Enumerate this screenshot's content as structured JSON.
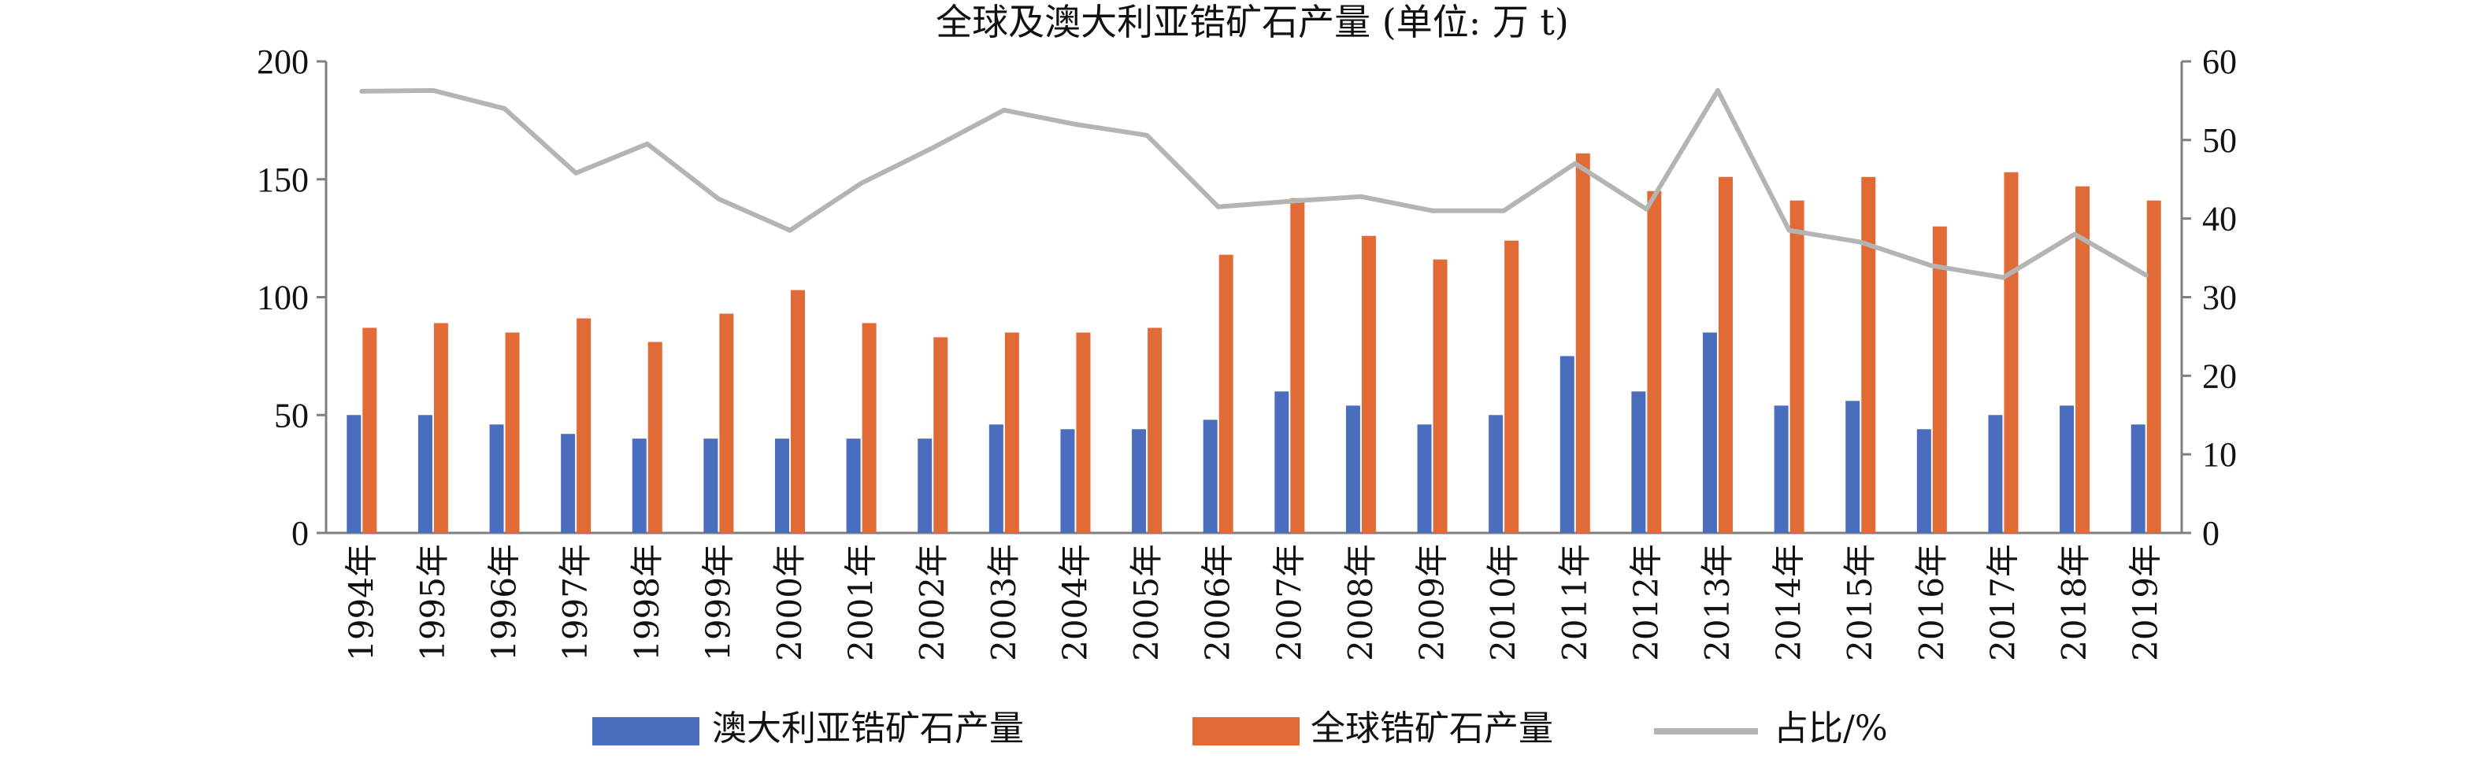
{
  "colors": {
    "australia": "#4a6ebd",
    "global": "#e06b36",
    "ratio": "#b4b4b4",
    "axis": "#7f7f7f"
  },
  "chart_data": {
    "type": "bar",
    "title": "全球及澳大利亚锆矿石产量 (单位: 万 t)",
    "categories": [
      "1994年",
      "1995年",
      "1996年",
      "1997年",
      "1998年",
      "1999年",
      "2000年",
      "2001年",
      "2002年",
      "2003年",
      "2004年",
      "2005年",
      "2006年",
      "2007年",
      "2008年",
      "2009年",
      "2010年",
      "2011年",
      "2012年",
      "2013年",
      "2014年",
      "2015年",
      "2016年",
      "2017年",
      "2018年",
      "2019年"
    ],
    "y_left": {
      "range": [
        0,
        200
      ],
      "ticks": [
        0,
        50,
        100,
        150,
        200
      ]
    },
    "y_right": {
      "range": [
        0,
        60
      ],
      "ticks": [
        0,
        10,
        20,
        30,
        40,
        50,
        60
      ]
    },
    "series": [
      {
        "name": "澳大利亚锆矿石产量",
        "kind": "bar",
        "axis": "left",
        "values": [
          50,
          50,
          46,
          42,
          40,
          40,
          40,
          40,
          40,
          46,
          44,
          44,
          48,
          60,
          54,
          46,
          50,
          75,
          60,
          85,
          54,
          56,
          44,
          50,
          54,
          46
        ]
      },
      {
        "name": "全球锆矿石产量",
        "kind": "bar",
        "axis": "left",
        "values": [
          87,
          89,
          85,
          91,
          81,
          93,
          103,
          89,
          83,
          85,
          85,
          87,
          118,
          142,
          126,
          116,
          124,
          161,
          145,
          151,
          141,
          151,
          130,
          153,
          147,
          141
        ]
      },
      {
        "name": "占比/%",
        "kind": "line",
        "axis": "right",
        "values": [
          56.2,
          56.3,
          54.0,
          45.8,
          49.5,
          42.5,
          38.5,
          44.5,
          49.0,
          53.8,
          52.0,
          50.6,
          41.5,
          42.2,
          42.8,
          41.0,
          41.0,
          47.0,
          41.2,
          56.3,
          38.5,
          37.0,
          34.0,
          32.5,
          38.0,
          32.8
        ]
      }
    ],
    "legend": {
      "position": "bottom"
    },
    "grid": false
  }
}
